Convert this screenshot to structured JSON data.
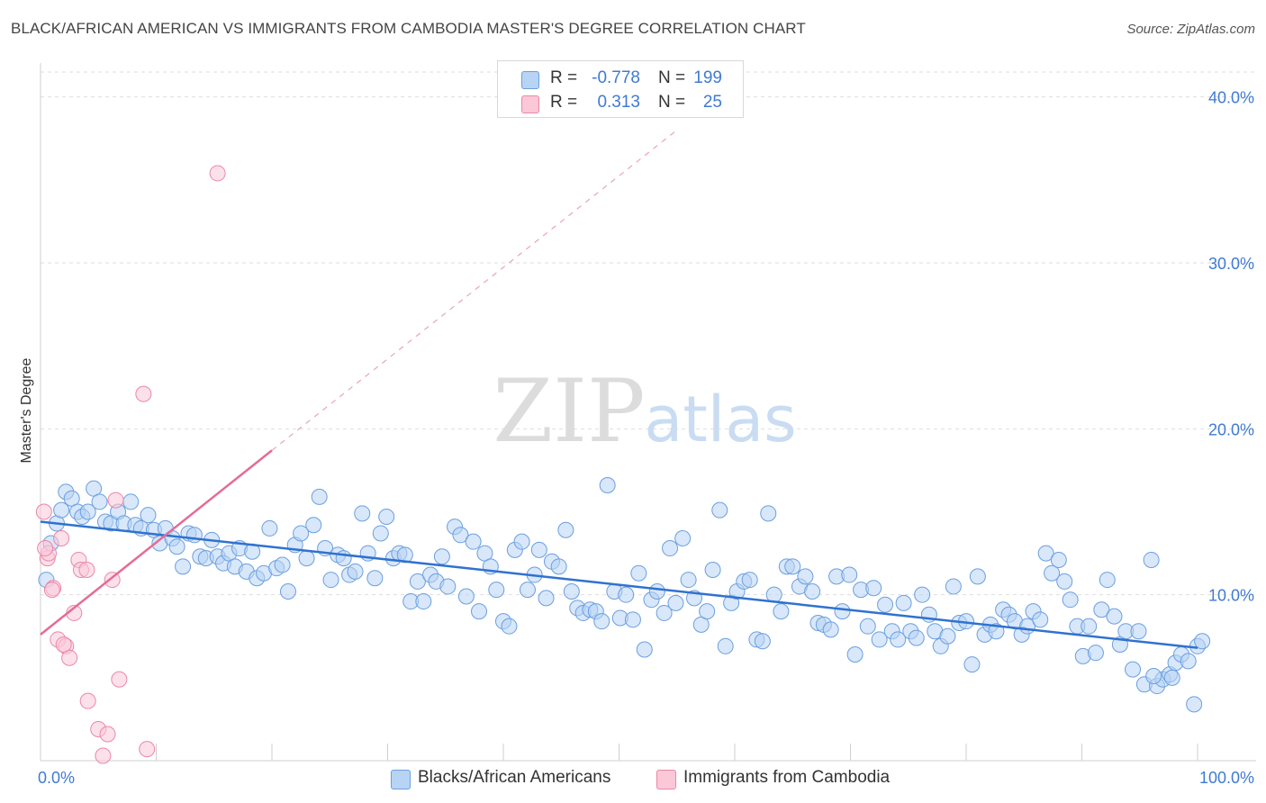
{
  "title": "BLACK/AFRICAN AMERICAN VS IMMIGRANTS FROM CAMBODIA MASTER'S DEGREE CORRELATION CHART",
  "source": "Source: ZipAtlas.com",
  "watermark": {
    "zip": "ZIP",
    "atlas": "atlas"
  },
  "legend": {
    "r_label": "R =",
    "n_label": "N =",
    "rows": [
      {
        "r": "-0.778",
        "n": "199",
        "color": "#b8d4f4",
        "border": "#6a9fe0"
      },
      {
        "r": "0.313",
        "n": "25",
        "color": "#fbc8d8",
        "border": "#ea87a8"
      }
    ]
  },
  "bottom_legend": [
    {
      "label": "Blacks/African Americans",
      "color": "#b8d4f4",
      "border": "#6a9fe0"
    },
    {
      "label": "Immigrants from Cambodia",
      "color": "#fbc8d8",
      "border": "#ea87a8"
    }
  ],
  "chart_data": {
    "type": "scatter",
    "title": "BLACK/AFRICAN AMERICAN VS IMMIGRANTS FROM CAMBODIA MASTER'S DEGREE CORRELATION CHART",
    "xlabel": "",
    "ylabel": "Master's Degree",
    "xlim": [
      0,
      100
    ],
    "ylim": [
      0,
      41.5
    ],
    "x_tick_labels": [
      {
        "value": 0,
        "label": "0.0%"
      },
      {
        "value": 100,
        "label": "100.0%"
      }
    ],
    "y_tick_labels": [
      {
        "value": 10,
        "label": "10.0%"
      },
      {
        "value": 20,
        "label": "20.0%"
      },
      {
        "value": 30,
        "label": "30.0%"
      },
      {
        "value": 40,
        "label": "40.0%"
      }
    ],
    "grid": "horizontal dashed",
    "legend_position": "top-center",
    "series": [
      {
        "name": "Blacks/African Americans",
        "color": "#6a9fe0",
        "fill": "#b8d4f4",
        "trend": {
          "x0": 0,
          "y0": 14.4,
          "x1": 100,
          "y1": 6.8
        },
        "points": [
          [
            0.5,
            10.9
          ],
          [
            0.9,
            13.1
          ],
          [
            1.4,
            14.3
          ],
          [
            1.8,
            15.1
          ],
          [
            2.2,
            16.2
          ],
          [
            2.7,
            15.8
          ],
          [
            3.2,
            15.0
          ],
          [
            3.6,
            14.7
          ],
          [
            4.1,
            15.0
          ],
          [
            4.6,
            16.4
          ],
          [
            5.1,
            15.6
          ],
          [
            5.6,
            14.4
          ],
          [
            6.1,
            14.3
          ],
          [
            6.7,
            15.0
          ],
          [
            7.2,
            14.3
          ],
          [
            7.8,
            15.6
          ],
          [
            8.2,
            14.2
          ],
          [
            8.7,
            14.0
          ],
          [
            9.3,
            14.8
          ],
          [
            9.8,
            13.9
          ],
          [
            10.3,
            13.1
          ],
          [
            10.8,
            14.0
          ],
          [
            11.4,
            13.4
          ],
          [
            11.8,
            12.9
          ],
          [
            12.3,
            11.7
          ],
          [
            12.8,
            13.7
          ],
          [
            13.3,
            13.6
          ],
          [
            13.8,
            12.3
          ],
          [
            14.3,
            12.2
          ],
          [
            14.8,
            13.3
          ],
          [
            15.3,
            12.3
          ],
          [
            15.8,
            11.9
          ],
          [
            16.3,
            12.5
          ],
          [
            16.8,
            11.7
          ],
          [
            17.2,
            12.8
          ],
          [
            17.8,
            11.4
          ],
          [
            18.3,
            12.6
          ],
          [
            18.7,
            11.0
          ],
          [
            19.3,
            11.3
          ],
          [
            19.8,
            14.0
          ],
          [
            20.4,
            11.6
          ],
          [
            20.9,
            11.8
          ],
          [
            21.4,
            10.2
          ],
          [
            22.0,
            13.0
          ],
          [
            22.5,
            13.7
          ],
          [
            23.0,
            12.2
          ],
          [
            23.6,
            14.2
          ],
          [
            24.1,
            15.9
          ],
          [
            24.6,
            12.8
          ],
          [
            25.1,
            10.9
          ],
          [
            25.7,
            12.4
          ],
          [
            26.2,
            12.2
          ],
          [
            26.7,
            11.2
          ],
          [
            27.2,
            11.4
          ],
          [
            27.8,
            14.9
          ],
          [
            28.3,
            12.5
          ],
          [
            28.9,
            11.0
          ],
          [
            29.4,
            13.7
          ],
          [
            29.9,
            14.7
          ],
          [
            30.5,
            12.2
          ],
          [
            31.0,
            12.5
          ],
          [
            31.5,
            12.4
          ],
          [
            32.0,
            9.6
          ],
          [
            32.6,
            10.8
          ],
          [
            33.1,
            9.6
          ],
          [
            33.7,
            11.2
          ],
          [
            34.2,
            10.8
          ],
          [
            34.7,
            12.3
          ],
          [
            35.2,
            10.5
          ],
          [
            35.8,
            14.1
          ],
          [
            36.3,
            13.6
          ],
          [
            36.8,
            9.9
          ],
          [
            37.4,
            13.2
          ],
          [
            37.9,
            9.0
          ],
          [
            38.4,
            12.5
          ],
          [
            38.9,
            11.7
          ],
          [
            39.4,
            10.3
          ],
          [
            40.0,
            8.4
          ],
          [
            40.5,
            8.1
          ],
          [
            41.0,
            12.7
          ],
          [
            41.6,
            13.2
          ],
          [
            42.1,
            10.3
          ],
          [
            42.7,
            11.2
          ],
          [
            43.1,
            12.7
          ],
          [
            43.7,
            9.8
          ],
          [
            44.2,
            12.0
          ],
          [
            44.8,
            11.7
          ],
          [
            45.4,
            13.9
          ],
          [
            45.9,
            10.2
          ],
          [
            46.4,
            9.2
          ],
          [
            46.9,
            8.9
          ],
          [
            47.5,
            9.1
          ],
          [
            48.0,
            9.0
          ],
          [
            48.5,
            8.4
          ],
          [
            49.0,
            16.6
          ],
          [
            49.6,
            10.2
          ],
          [
            50.1,
            8.6
          ],
          [
            50.6,
            10.0
          ],
          [
            51.2,
            8.5
          ],
          [
            51.7,
            11.3
          ],
          [
            52.2,
            6.7
          ],
          [
            52.8,
            9.7
          ],
          [
            53.3,
            10.2
          ],
          [
            53.9,
            8.9
          ],
          [
            54.4,
            12.8
          ],
          [
            54.9,
            9.5
          ],
          [
            55.5,
            13.4
          ],
          [
            56.0,
            10.9
          ],
          [
            56.5,
            9.8
          ],
          [
            57.1,
            8.2
          ],
          [
            57.6,
            9.0
          ],
          [
            58.1,
            11.5
          ],
          [
            58.7,
            15.1
          ],
          [
            59.2,
            6.9
          ],
          [
            59.7,
            9.5
          ],
          [
            60.2,
            10.2
          ],
          [
            60.8,
            10.8
          ],
          [
            61.3,
            10.9
          ],
          [
            61.9,
            7.3
          ],
          [
            62.4,
            7.2
          ],
          [
            62.9,
            14.9
          ],
          [
            63.4,
            10.0
          ],
          [
            64.0,
            9.0
          ],
          [
            64.5,
            11.7
          ],
          [
            65.0,
            11.7
          ],
          [
            65.6,
            10.5
          ],
          [
            66.1,
            11.1
          ],
          [
            66.7,
            10.2
          ],
          [
            67.2,
            8.3
          ],
          [
            67.7,
            8.2
          ],
          [
            68.3,
            7.9
          ],
          [
            68.8,
            11.1
          ],
          [
            69.3,
            9.0
          ],
          [
            69.9,
            11.2
          ],
          [
            70.4,
            6.4
          ],
          [
            70.9,
            10.3
          ],
          [
            71.5,
            8.1
          ],
          [
            72.0,
            10.4
          ],
          [
            72.5,
            7.3
          ],
          [
            73.0,
            9.4
          ],
          [
            73.6,
            7.8
          ],
          [
            74.1,
            7.3
          ],
          [
            74.6,
            9.5
          ],
          [
            75.2,
            7.8
          ],
          [
            75.7,
            7.4
          ],
          [
            76.2,
            10.0
          ],
          [
            76.8,
            8.8
          ],
          [
            77.3,
            7.8
          ],
          [
            77.8,
            6.9
          ],
          [
            78.4,
            7.5
          ],
          [
            78.9,
            10.5
          ],
          [
            79.4,
            8.3
          ],
          [
            80.0,
            8.4
          ],
          [
            80.5,
            5.8
          ],
          [
            81.0,
            11.1
          ],
          [
            81.6,
            7.6
          ],
          [
            82.1,
            8.2
          ],
          [
            82.6,
            7.8
          ],
          [
            83.2,
            9.1
          ],
          [
            83.7,
            8.8
          ],
          [
            84.2,
            8.4
          ],
          [
            84.8,
            7.6
          ],
          [
            85.3,
            8.1
          ],
          [
            85.8,
            9.0
          ],
          [
            86.4,
            8.5
          ],
          [
            86.9,
            12.5
          ],
          [
            87.4,
            11.3
          ],
          [
            88.0,
            12.1
          ],
          [
            88.5,
            10.8
          ],
          [
            89.0,
            9.7
          ],
          [
            89.6,
            8.1
          ],
          [
            90.1,
            6.3
          ],
          [
            90.6,
            8.1
          ],
          [
            91.2,
            6.5
          ],
          [
            91.7,
            9.1
          ],
          [
            92.2,
            10.9
          ],
          [
            92.8,
            8.7
          ],
          [
            93.3,
            7.0
          ],
          [
            93.8,
            7.8
          ],
          [
            94.4,
            5.5
          ],
          [
            94.9,
            7.8
          ],
          [
            95.4,
            4.6
          ],
          [
            96.0,
            12.1
          ],
          [
            96.5,
            4.5
          ],
          [
            97.0,
            4.9
          ],
          [
            97.6,
            5.2
          ],
          [
            98.1,
            5.9
          ],
          [
            98.6,
            6.4
          ],
          [
            99.2,
            6.0
          ],
          [
            99.7,
            3.4
          ],
          [
            100.0,
            6.9
          ],
          [
            100.4,
            7.2
          ],
          [
            97.8,
            5.0
          ],
          [
            96.2,
            5.1
          ]
        ]
      },
      {
        "name": "Immigrants from Cambodia",
        "color": "#ea87a8",
        "fill": "#fbc8d8",
        "trend": {
          "x0": 0,
          "y0": 7.6,
          "x1": 20,
          "y1": 18.7,
          "dashed_to": {
            "x": 55,
            "y": 38.0
          }
        },
        "points": [
          [
            0.3,
            15.0
          ],
          [
            0.6,
            12.2
          ],
          [
            0.7,
            12.5
          ],
          [
            1.1,
            10.4
          ],
          [
            1.5,
            7.3
          ],
          [
            1.8,
            13.4
          ],
          [
            2.2,
            6.9
          ],
          [
            2.5,
            6.2
          ],
          [
            2.9,
            8.9
          ],
          [
            3.3,
            12.1
          ],
          [
            3.5,
            11.5
          ],
          [
            4.0,
            11.5
          ],
          [
            4.1,
            3.6
          ],
          [
            5.0,
            1.9
          ],
          [
            5.4,
            0.3
          ],
          [
            5.8,
            1.6
          ],
          [
            6.2,
            10.9
          ],
          [
            6.5,
            15.7
          ],
          [
            6.8,
            4.9
          ],
          [
            8.9,
            22.1
          ],
          [
            9.2,
            0.7
          ],
          [
            15.3,
            35.4
          ],
          [
            1.0,
            10.3
          ],
          [
            2.0,
            7.0
          ],
          [
            0.4,
            12.8
          ]
        ]
      }
    ]
  }
}
